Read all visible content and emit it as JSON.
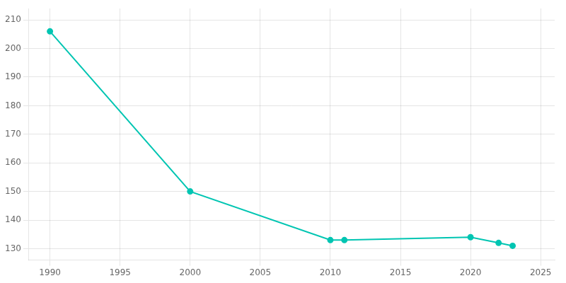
{
  "chart_data": {
    "type": "line",
    "x": [
      1990,
      2000,
      2010,
      2011,
      2020,
      2022,
      2023
    ],
    "values": [
      206,
      150,
      133,
      133,
      134,
      132,
      131
    ],
    "color": "#00C5B2",
    "marker": "circle",
    "xlim": [
      1988.5,
      2026
    ],
    "ylim": [
      126,
      214
    ],
    "xticks": [
      1990,
      1995,
      2000,
      2005,
      2010,
      2015,
      2020,
      2025
    ],
    "yticks": [
      130,
      140,
      150,
      160,
      170,
      180,
      190,
      200,
      210
    ],
    "grid": true
  }
}
